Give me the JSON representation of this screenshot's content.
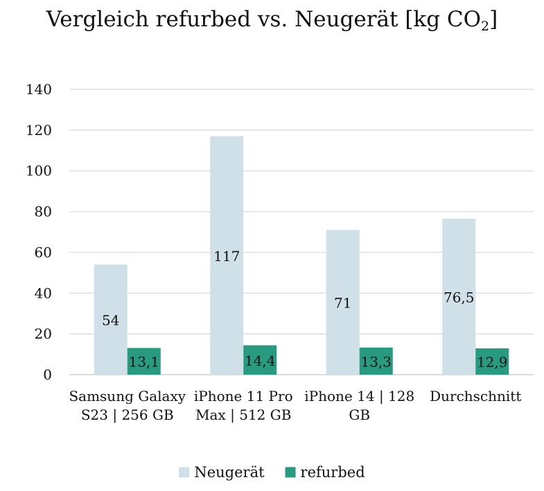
{
  "chart_data": {
    "type": "bar",
    "title": {
      "main": "Vergleich refurbed vs. Neugerät [kg CO",
      "subscript": "2",
      "end": "]"
    },
    "categories": [
      [
        "Samsung Galaxy",
        "S23 | 256 GB"
      ],
      [
        "iPhone 11 Pro",
        "Max | 512 GB"
      ],
      [
        "iPhone 14 | 128",
        "GB"
      ],
      [
        "Durchschnitt"
      ]
    ],
    "series": [
      {
        "name": "Neugerät",
        "color": "#cfe0e8",
        "values": [
          54,
          117,
          71,
          76.5
        ],
        "labels": [
          "54",
          "117",
          "71",
          "76,5"
        ]
      },
      {
        "name": "refurbed",
        "color": "#289a7f",
        "values": [
          13.1,
          14.4,
          13.3,
          12.9
        ],
        "labels": [
          "13,1",
          "14,4",
          "13,3",
          "12,9"
        ]
      }
    ],
    "ylim": [
      0,
      140
    ],
    "yticks": [
      0,
      20,
      40,
      60,
      80,
      100,
      120,
      140
    ],
    "grid": true,
    "legend": "bottom-center",
    "xlabel": "",
    "ylabel": ""
  }
}
